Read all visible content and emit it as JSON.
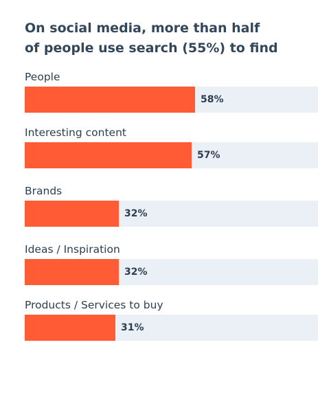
{
  "chart_data": {
    "type": "bar",
    "orientation": "horizontal",
    "title_lines": [
      "On social media, more than half",
      "of people use search (55%) to find"
    ],
    "categories": [
      "People",
      "Interesting content",
      "Brands",
      "Ideas / Inspiration",
      "Products / Services to buy"
    ],
    "values": [
      58,
      57,
      32,
      32,
      31
    ],
    "value_labels": [
      "58%",
      "57%",
      "32%",
      "32%",
      "31%"
    ],
    "unit": "%",
    "xlim": [
      0,
      100
    ],
    "grid": false,
    "legend": "none"
  },
  "colors": {
    "bar": "#ff5c35",
    "track": "#eaf0f6",
    "text": "#33475b"
  }
}
